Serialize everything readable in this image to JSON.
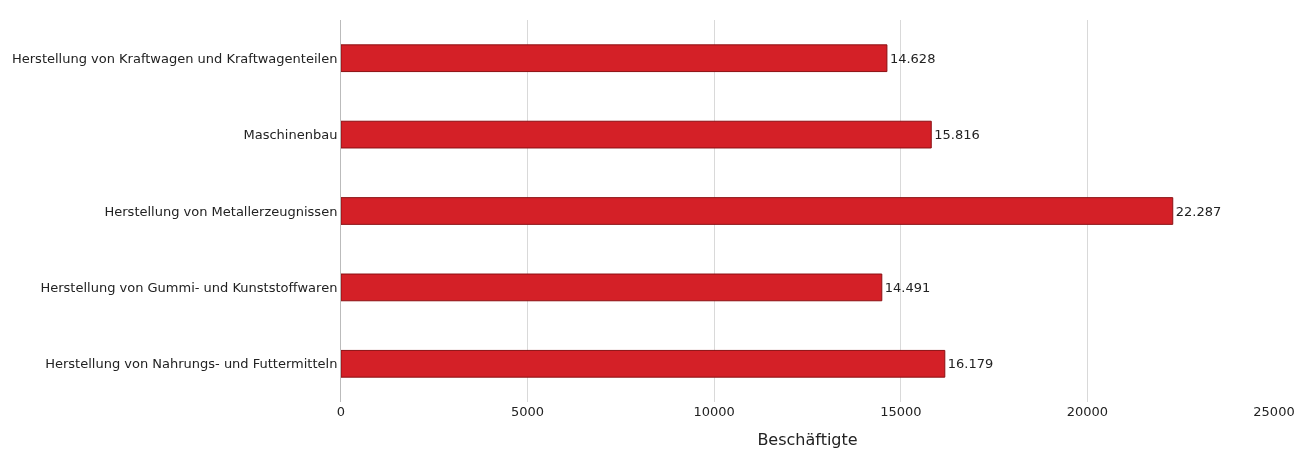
{
  "chart_data": {
    "type": "bar",
    "orientation": "horizontal",
    "categories": [
      "Herstellung von Kraftwagen und Kraftwagenteilen",
      "Maschinenbau",
      "Herstellung von Metallerzeugnissen",
      "Herstellung von Gummi- und Kunststoffwaren",
      "Herstellung von Nahrungs- und Futtermitteln"
    ],
    "values": [
      14628,
      15816,
      22287,
      14491,
      16179
    ],
    "value_labels": [
      "14.628",
      "15.816",
      "22.287",
      "14.491",
      "16.179"
    ],
    "color": "#d42027",
    "xlabel": "Beschäftigte",
    "xlim": [
      0,
      25000
    ],
    "xticks": [
      0,
      5000,
      10000,
      15000,
      20000,
      25000
    ],
    "grid": "x",
    "legend": false
  }
}
